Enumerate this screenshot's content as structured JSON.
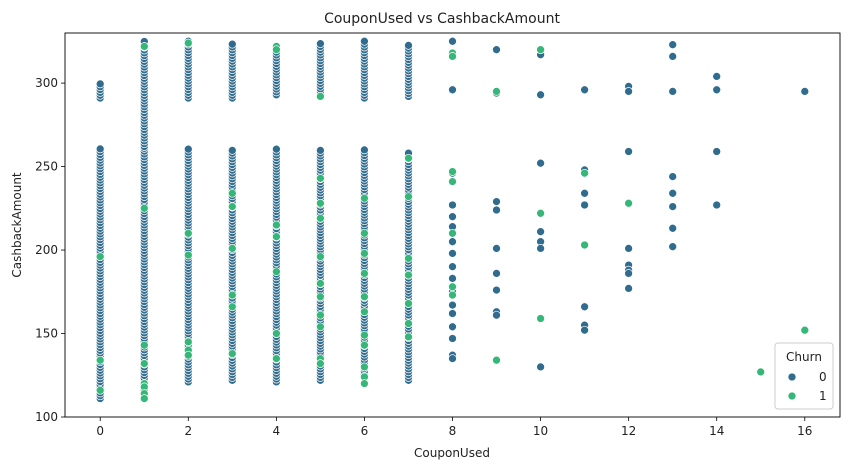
{
  "chart_data": {
    "type": "scatter",
    "title": "CouponUsed vs CashbackAmount",
    "xlabel": "CouponUsed",
    "ylabel": "CashbackAmount",
    "xlim": [
      -0.8,
      16.8
    ],
    "ylim": [
      100,
      330
    ],
    "x_ticks": [
      0,
      2,
      4,
      6,
      8,
      10,
      12,
      14,
      16
    ],
    "y_ticks": [
      100,
      150,
      200,
      250,
      300
    ],
    "grid": false,
    "legend": {
      "title": "Churn",
      "placement": "bottom-right",
      "entries": [
        {
          "label": "0",
          "color": "#2f6c8e"
        },
        {
          "label": "1",
          "color": "#35b779"
        }
      ]
    },
    "series": [
      {
        "name": "0",
        "color": "#2f6c8e",
        "dense_columns": [
          {
            "x": 0,
            "ranges": [
              [
                111,
                261
              ],
              [
                291,
                300
              ]
            ]
          },
          {
            "x": 1,
            "ranges": [
              [
                113,
                261
              ],
              [
                262,
                325
              ]
            ]
          },
          {
            "x": 2,
            "ranges": [
              [
                121,
                261
              ],
              [
                291,
                325
              ]
            ]
          },
          {
            "x": 3,
            "ranges": [
              [
                122,
                261
              ],
              [
                291,
                324
              ]
            ]
          },
          {
            "x": 4,
            "ranges": [
              [
                121,
                261
              ],
              [
                293,
                323
              ]
            ]
          },
          {
            "x": 5,
            "ranges": [
              [
                122,
                260
              ],
              [
                293,
                325
              ]
            ]
          },
          {
            "x": 6,
            "ranges": [
              [
                124,
                260
              ],
              [
                291,
                325
              ]
            ]
          },
          {
            "x": 7,
            "ranges": [
              [
                122,
                258
              ],
              [
                292,
                324
              ]
            ]
          }
        ],
        "points": [
          {
            "x": 8,
            "y": 325
          },
          {
            "x": 8,
            "y": 296
          },
          {
            "x": 8,
            "y": 246
          },
          {
            "x": 8,
            "y": 227
          },
          {
            "x": 8,
            "y": 220
          },
          {
            "x": 8,
            "y": 214
          },
          {
            "x": 8,
            "y": 205
          },
          {
            "x": 8,
            "y": 198
          },
          {
            "x": 8,
            "y": 190
          },
          {
            "x": 8,
            "y": 183
          },
          {
            "x": 8,
            "y": 175
          },
          {
            "x": 8,
            "y": 167
          },
          {
            "x": 8,
            "y": 162
          },
          {
            "x": 8,
            "y": 154
          },
          {
            "x": 8,
            "y": 147
          },
          {
            "x": 8,
            "y": 137
          },
          {
            "x": 8,
            "y": 135
          },
          {
            "x": 9,
            "y": 320
          },
          {
            "x": 9,
            "y": 294
          },
          {
            "x": 9,
            "y": 229
          },
          {
            "x": 9,
            "y": 224
          },
          {
            "x": 9,
            "y": 201
          },
          {
            "x": 9,
            "y": 186
          },
          {
            "x": 9,
            "y": 176
          },
          {
            "x": 9,
            "y": 163
          },
          {
            "x": 9,
            "y": 161
          },
          {
            "x": 9,
            "y": 134
          },
          {
            "x": 10,
            "y": 320
          },
          {
            "x": 10,
            "y": 317
          },
          {
            "x": 10,
            "y": 293
          },
          {
            "x": 10,
            "y": 252
          },
          {
            "x": 10,
            "y": 211
          },
          {
            "x": 10,
            "y": 205
          },
          {
            "x": 10,
            "y": 201
          },
          {
            "x": 10,
            "y": 130
          },
          {
            "x": 11,
            "y": 296
          },
          {
            "x": 11,
            "y": 248
          },
          {
            "x": 11,
            "y": 234
          },
          {
            "x": 11,
            "y": 227
          },
          {
            "x": 11,
            "y": 166
          },
          {
            "x": 11,
            "y": 155
          },
          {
            "x": 11,
            "y": 152
          },
          {
            "x": 12,
            "y": 298
          },
          {
            "x": 12,
            "y": 295
          },
          {
            "x": 12,
            "y": 259
          },
          {
            "x": 12,
            "y": 201
          },
          {
            "x": 12,
            "y": 191
          },
          {
            "x": 12,
            "y": 188
          },
          {
            "x": 12,
            "y": 186
          },
          {
            "x": 12,
            "y": 177
          },
          {
            "x": 13,
            "y": 323
          },
          {
            "x": 13,
            "y": 316
          },
          {
            "x": 13,
            "y": 295
          },
          {
            "x": 13,
            "y": 244
          },
          {
            "x": 13,
            "y": 234
          },
          {
            "x": 13,
            "y": 226
          },
          {
            "x": 13,
            "y": 213
          },
          {
            "x": 13,
            "y": 202
          },
          {
            "x": 14,
            "y": 304
          },
          {
            "x": 14,
            "y": 296
          },
          {
            "x": 14,
            "y": 259
          },
          {
            "x": 14,
            "y": 227
          },
          {
            "x": 16,
            "y": 295
          }
        ]
      },
      {
        "name": "1",
        "color": "#35b779",
        "points": [
          {
            "x": 0,
            "y": 196
          },
          {
            "x": 0,
            "y": 134
          },
          {
            "x": 0,
            "y": 116
          },
          {
            "x": 1,
            "y": 322
          },
          {
            "x": 1,
            "y": 225
          },
          {
            "x": 1,
            "y": 143
          },
          {
            "x": 1,
            "y": 132
          },
          {
            "x": 1,
            "y": 120
          },
          {
            "x": 1,
            "y": 118
          },
          {
            "x": 1,
            "y": 114
          },
          {
            "x": 1,
            "y": 111
          },
          {
            "x": 2,
            "y": 324
          },
          {
            "x": 2,
            "y": 210
          },
          {
            "x": 2,
            "y": 197
          },
          {
            "x": 2,
            "y": 145
          },
          {
            "x": 2,
            "y": 140
          },
          {
            "x": 2,
            "y": 137
          },
          {
            "x": 3,
            "y": 234
          },
          {
            "x": 3,
            "y": 226
          },
          {
            "x": 3,
            "y": 201
          },
          {
            "x": 3,
            "y": 173
          },
          {
            "x": 3,
            "y": 166
          },
          {
            "x": 3,
            "y": 138
          },
          {
            "x": 4,
            "y": 322
          },
          {
            "x": 4,
            "y": 320
          },
          {
            "x": 4,
            "y": 215
          },
          {
            "x": 4,
            "y": 208
          },
          {
            "x": 4,
            "y": 187
          },
          {
            "x": 4,
            "y": 150
          },
          {
            "x": 4,
            "y": 135
          },
          {
            "x": 5,
            "y": 292
          },
          {
            "x": 5,
            "y": 243
          },
          {
            "x": 5,
            "y": 228
          },
          {
            "x": 5,
            "y": 219
          },
          {
            "x": 5,
            "y": 196
          },
          {
            "x": 5,
            "y": 180
          },
          {
            "x": 5,
            "y": 172
          },
          {
            "x": 5,
            "y": 161
          },
          {
            "x": 5,
            "y": 154
          },
          {
            "x": 5,
            "y": 135
          },
          {
            "x": 5,
            "y": 132
          },
          {
            "x": 6,
            "y": 231
          },
          {
            "x": 6,
            "y": 210
          },
          {
            "x": 6,
            "y": 198
          },
          {
            "x": 6,
            "y": 186
          },
          {
            "x": 6,
            "y": 172
          },
          {
            "x": 6,
            "y": 163
          },
          {
            "x": 6,
            "y": 149
          },
          {
            "x": 6,
            "y": 143
          },
          {
            "x": 6,
            "y": 130
          },
          {
            "x": 6,
            "y": 124
          },
          {
            "x": 6,
            "y": 120
          },
          {
            "x": 7,
            "y": 255
          },
          {
            "x": 7,
            "y": 232
          },
          {
            "x": 7,
            "y": 195
          },
          {
            "x": 7,
            "y": 185
          },
          {
            "x": 7,
            "y": 168
          },
          {
            "x": 7,
            "y": 156
          },
          {
            "x": 7,
            "y": 148
          },
          {
            "x": 8,
            "y": 318
          },
          {
            "x": 8,
            "y": 316
          },
          {
            "x": 8,
            "y": 247
          },
          {
            "x": 8,
            "y": 241
          },
          {
            "x": 8,
            "y": 210
          },
          {
            "x": 8,
            "y": 178
          },
          {
            "x": 8,
            "y": 173
          },
          {
            "x": 9,
            "y": 295
          },
          {
            "x": 9,
            "y": 134
          },
          {
            "x": 10,
            "y": 320
          },
          {
            "x": 10,
            "y": 222
          },
          {
            "x": 10,
            "y": 159
          },
          {
            "x": 11,
            "y": 246
          },
          {
            "x": 11,
            "y": 203
          },
          {
            "x": 12,
            "y": 228
          },
          {
            "x": 15,
            "y": 127
          },
          {
            "x": 16,
            "y": 152
          }
        ]
      }
    ]
  }
}
